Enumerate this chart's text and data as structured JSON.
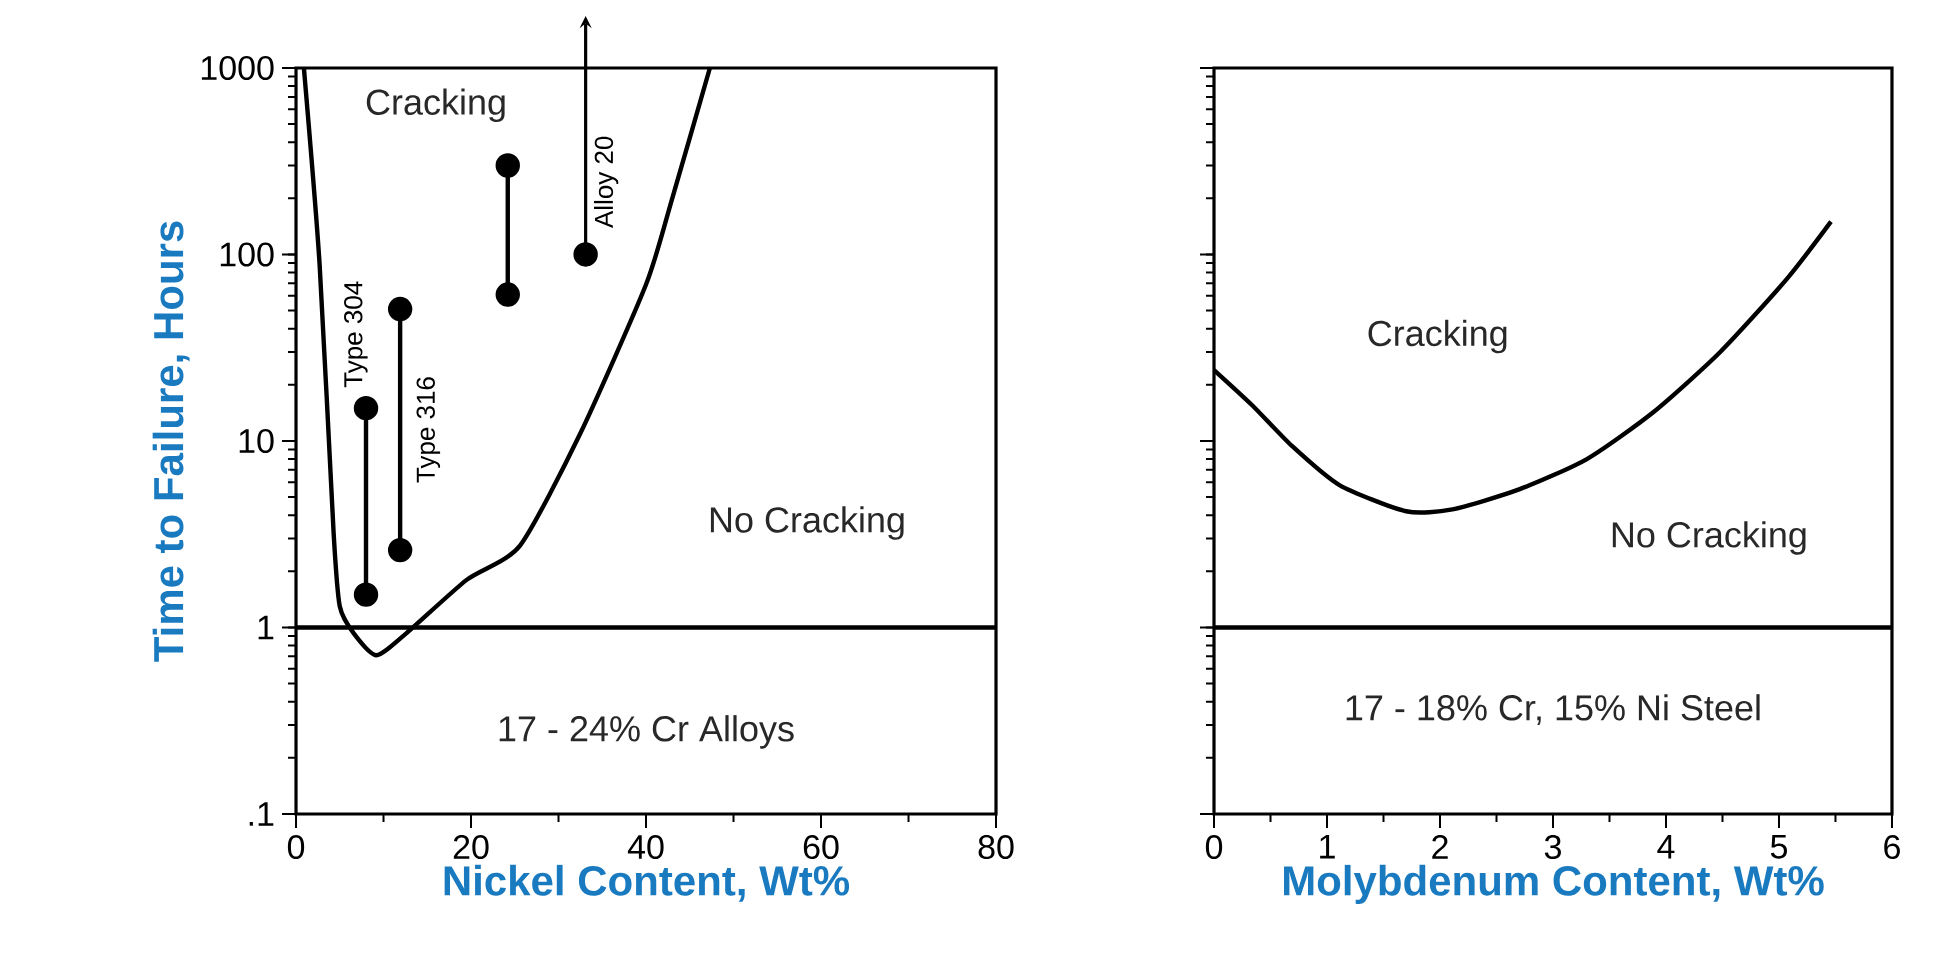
{
  "chart_data": [
    {
      "type": "line",
      "xlabel": "Nickel Content, Wt%",
      "ylabel": "Time to Failure,  Hours",
      "xlim": [
        0,
        80
      ],
      "xticks": [
        0,
        20,
        40,
        60,
        80
      ],
      "ylim": [
        0.1,
        1000
      ],
      "yticks": [
        {
          "value": 0.1,
          "label": ".1"
        },
        1,
        10,
        100,
        1000
      ],
      "log": "y",
      "ref_lines": [
        {
          "axis": "y",
          "value": 1,
          "color": "#000000"
        }
      ],
      "annotations": [
        "Cracking",
        "No Cracking",
        "17 - 24% Cr Alloys"
      ],
      "series": [
        {
          "color": "#000000",
          "marker": "none",
          "x": [
            0.9,
            2.7,
            4.3,
            5.0,
            6.6,
            9.2,
            12.6,
            19.5,
            25.6,
            32.5,
            40,
            43,
            47.3
          ],
          "values": [
            1000,
            88,
            3.2,
            1.3,
            0.93,
            0.71,
            0.93,
            1.8,
            2.75,
            11,
            69,
            200,
            1000
          ]
        },
        {
          "name": "Type 304",
          "color": "#000000",
          "marker": "circle",
          "x": [
            8,
            8
          ],
          "values": [
            1.5,
            15
          ]
        },
        {
          "name": "Type 316",
          "color": "#000000",
          "marker": "circle",
          "x": [
            11.9,
            11.9
          ],
          "values": [
            2.6,
            51
          ]
        },
        {
          "color": "#000000",
          "marker": "circle",
          "x": [
            24.2,
            24.2
          ],
          "values": [
            61,
            300
          ]
        },
        {
          "name": "Alloy 20",
          "color": "#000000",
          "marker": "circle",
          "x": [
            33.1
          ],
          "values": [
            100
          ]
        }
      ]
    },
    {
      "type": "line",
      "xlabel": "Molybdenum Content, Wt%",
      "xlim": [
        0,
        6
      ],
      "xticks": [
        0,
        1,
        2,
        3,
        4,
        5,
        6
      ],
      "ylim": [
        0.1,
        1000
      ],
      "yticks": [
        0.1,
        1,
        10,
        100,
        1000
      ],
      "log": "y",
      "tick_labels": "x",
      "ref_lines": [
        {
          "axis": "y",
          "value": 1,
          "color": "#000000"
        }
      ],
      "annotations": [
        "Cracking",
        "No Cracking",
        "17 - 18% Cr, 15% Ni Steel"
      ],
      "series": [
        {
          "color": "#000000",
          "marker": "none",
          "x": [
            0,
            0.34,
            0.69,
            1.11,
            1.7,
            2.11,
            2.7,
            3.3,
            3.89,
            4.48,
            5.07,
            5.46
          ],
          "values": [
            24,
            15.5,
            9.4,
            5.8,
            4.2,
            4.3,
            5.5,
            8,
            14.3,
            30,
            74,
            150
          ]
        }
      ]
    }
  ]
}
